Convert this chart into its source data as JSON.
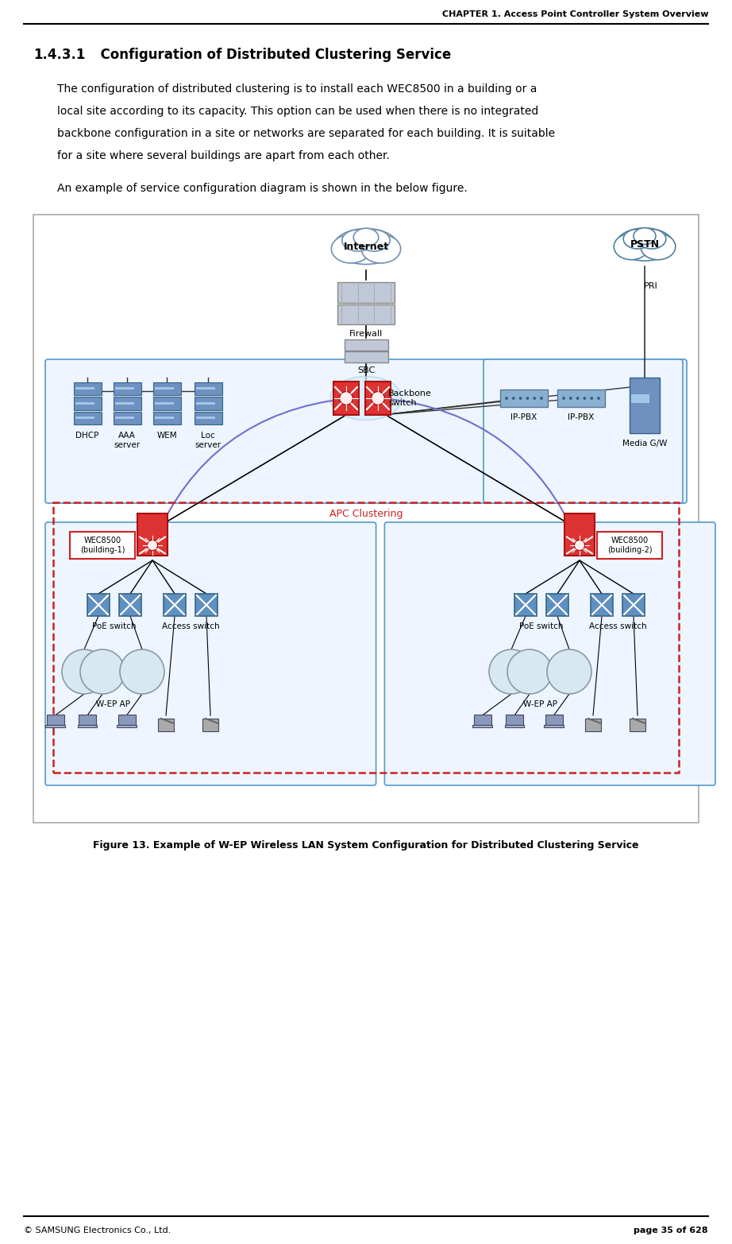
{
  "header_text": "CHAPTER 1. Access Point Controller System Overview",
  "footer_left": "© SAMSUNG Electronics Co., Ltd.",
  "footer_right": "page 35 of 628",
  "section_number": "1.4.3.1",
  "section_title": "  Configuration of Distributed Clustering Service",
  "body_line1": "The configuration of distributed clustering is to install each WEC8500 in a building or a",
  "body_line2": "local site according to its capacity. This option can be used when there is no integrated",
  "body_line3": "backbone configuration in a site or networks are separated for each building. It is suitable",
  "body_line4": "for a site where several buildings are apart from each other.",
  "intro_text": "An example of service configuration diagram is shown in the below figure.",
  "figure_caption": "Figure 13. Example of W-EP Wireless LAN System Configuration for Distributed Clustering Service",
  "bg_color": "#ffffff",
  "text_color": "#000000",
  "header_line_color": "#000000",
  "diagram_border_color": "#aaaaaa",
  "diagram_bg": "#ffffff",
  "cloud_face": "#ffffff",
  "cloud_edge": "#7090b0",
  "pstn_cloud_edge": "#5080a0",
  "server_blue": "#6090c0",
  "server_light": "#a0c0e0",
  "switch_red": "#cc2222",
  "switch_hub_color": "#d0e8f8",
  "box_blue_bg": "#ddeeff",
  "box_blue_edge": "#4488cc",
  "dashed_red": "#cc2222",
  "dashed_blue_edge": "#5599cc",
  "dashed_blue_bg": "#eef5ff",
  "wec_label_edge": "#cc2222",
  "wec_label_bg": "#ffffff",
  "line_black": "#000000",
  "line_blue_purple": "#7070cc",
  "apc_label_color": "#cc2222"
}
